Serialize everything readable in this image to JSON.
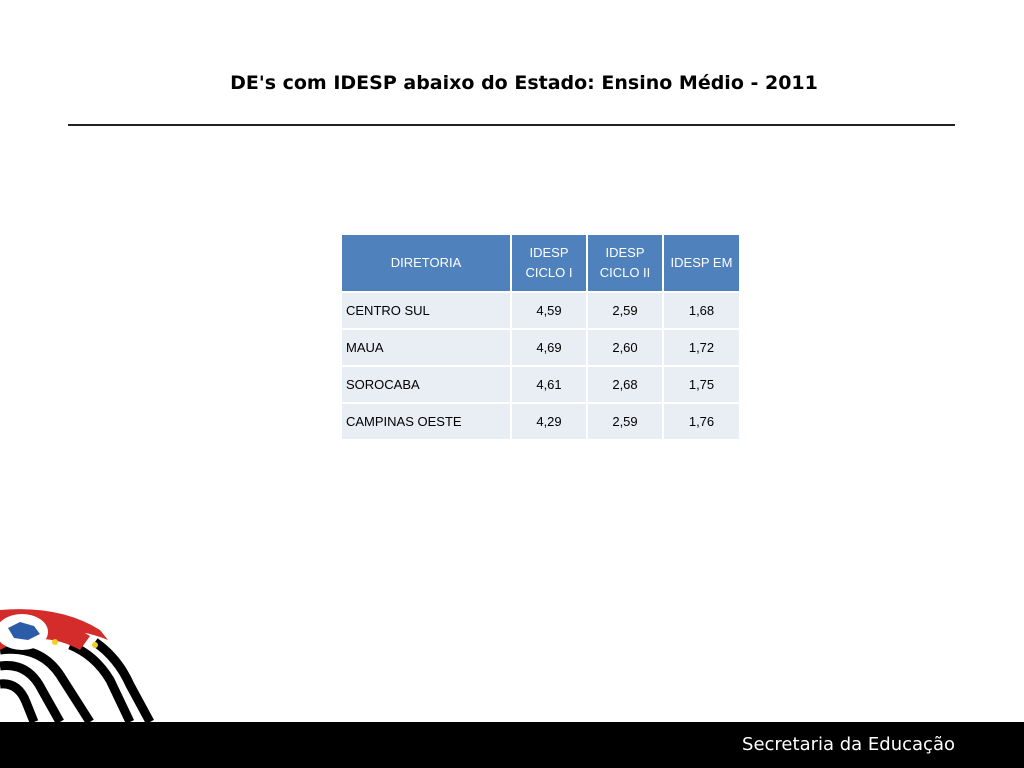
{
  "header": {
    "title": "DE's com IDESP abaixo do Estado: Ensino Médio - 2011"
  },
  "table": {
    "columns": [
      "DIRETORIA",
      "IDESP CICLO I",
      "IDESP CICLO II",
      "IDESP EM"
    ],
    "rows": [
      [
        "CENTRO SUL",
        "4,59",
        "2,59",
        "1,68"
      ],
      [
        "MAUA",
        "4,69",
        "2,60",
        "1,72"
      ],
      [
        "SOROCABA",
        "4,61",
        "2,68",
        "1,75"
      ],
      [
        "CAMPINAS OESTE",
        "4,29",
        "2,59",
        "1,76"
      ]
    ]
  },
  "footer": {
    "text": "Secretaria da Educação"
  }
}
